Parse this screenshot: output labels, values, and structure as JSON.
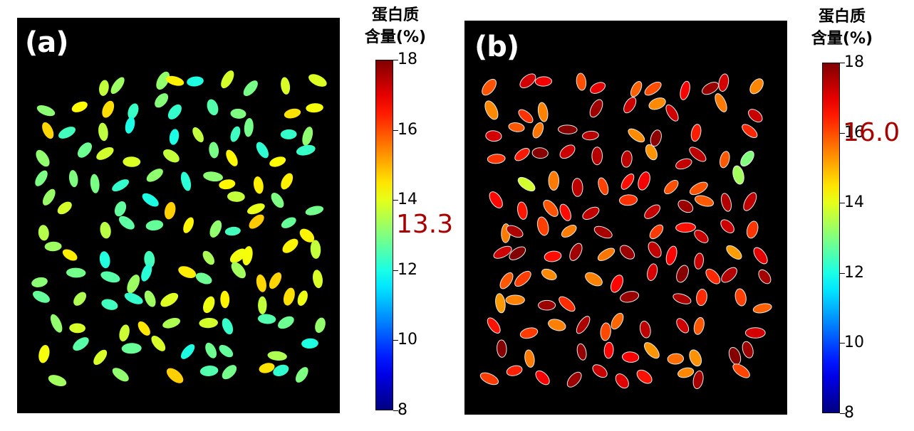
{
  "colorbar": {
    "title_line1": "蛋白质",
    "title_line2": "含量(%)",
    "min": 8,
    "max": 18,
    "ticks": [
      "18",
      "16",
      "14",
      "12",
      "10",
      "8"
    ],
    "tick_values": [
      18,
      16,
      14,
      12,
      10,
      8
    ]
  },
  "panels": [
    {
      "label": "(a)",
      "mean_label": "13.3",
      "mean_value": 13.3,
      "color": "#a80000"
    },
    {
      "label": "(b)",
      "mean_label": "16.0",
      "mean_value": 16.0,
      "color": "#a80000"
    }
  ]
}
